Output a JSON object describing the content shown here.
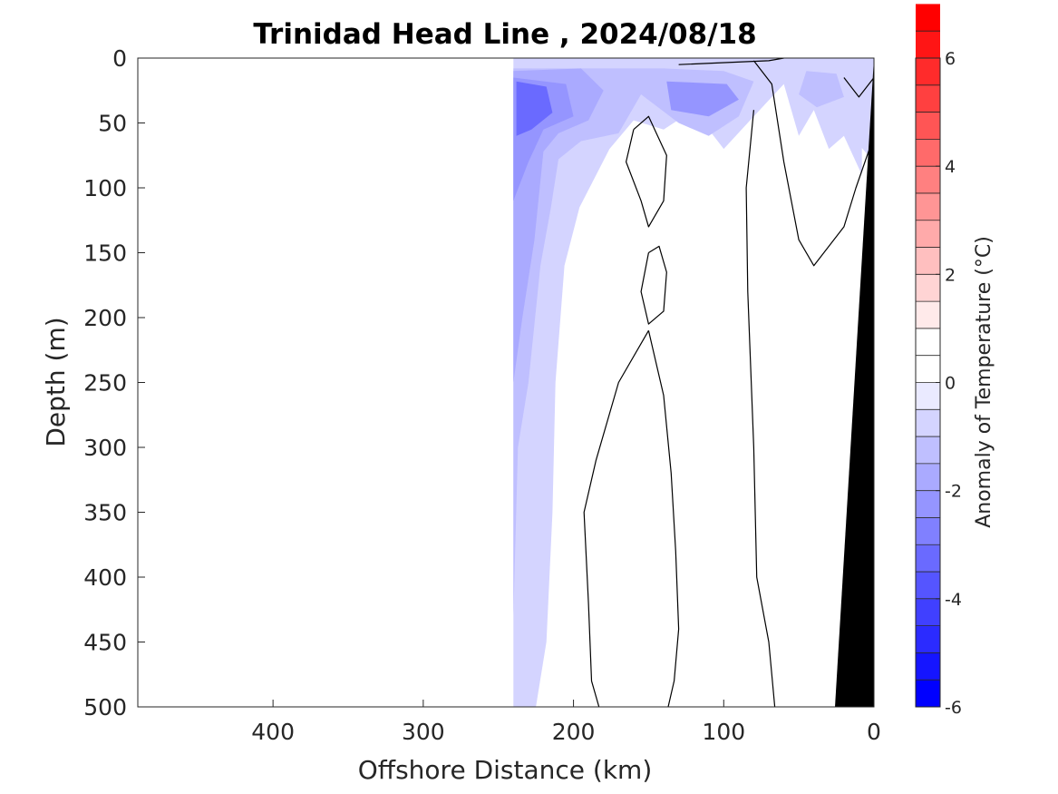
{
  "chart_data": {
    "type": "heatmap",
    "title": "Trinidad Head Line , 2024/08/18",
    "xlabel": "Offshore Distance (km)",
    "ylabel": "Depth (m)",
    "xlim": [
      490,
      0
    ],
    "ylim": [
      500,
      0
    ],
    "x_reversed": true,
    "y_reversed": true,
    "xticks": [
      400,
      300,
      200,
      100,
      0
    ],
    "xtick_labels": [
      "400",
      "300",
      "200",
      "100",
      "0"
    ],
    "yticks": [
      0,
      50,
      100,
      150,
      200,
      250,
      300,
      350,
      400,
      450,
      500
    ],
    "ytick_labels": [
      "0",
      "50",
      "100",
      "150",
      "200",
      "250",
      "300",
      "350",
      "400",
      "450",
      "500"
    ],
    "data_extent_offshore_km": [
      240,
      0
    ],
    "zero_contour_line_color": "#000000",
    "bathymetry_fill_color": "#000000",
    "colorbar": {
      "label": "Anomaly of Temperature (°C)",
      "range": [
        -6,
        6
      ],
      "step": 0.5,
      "ticks": [
        6,
        4,
        2,
        0,
        -2,
        -4,
        -6
      ],
      "tick_labels": [
        "6",
        "4",
        "2",
        "0",
        "-2",
        "-4",
        "-6"
      ],
      "colors_low_to_high": [
        "#0000ff",
        "#1515ff",
        "#2b2bff",
        "#4040ff",
        "#5555ff",
        "#6a6aff",
        "#8080ff",
        "#9595ff",
        "#aaaaff",
        "#bfbfff",
        "#d4d4ff",
        "#eaeaff",
        "#ffffff",
        "#ffffff",
        "#ffeaea",
        "#ffd4d4",
        "#ffbfbf",
        "#ffaaaa",
        "#ff9595",
        "#ff8080",
        "#ff6a6a",
        "#ff5555",
        "#ff4040",
        "#ff2b2b",
        "#ff1515",
        "#ff0000"
      ]
    },
    "anomaly_regions": [
      {
        "value": -1.0,
        "points": [
          [
            240,
            0
          ],
          [
            100,
            0
          ],
          [
            70,
            5
          ],
          [
            55,
            0
          ],
          [
            30,
            0
          ],
          [
            15,
            8
          ],
          [
            15,
            60
          ],
          [
            0,
            80
          ],
          [
            0,
            0
          ]
        ],
        "note": "upper cool layer"
      },
      {
        "value": -0.75,
        "points": [
          [
            240,
            0
          ],
          [
            240,
            500
          ],
          [
            225,
            500
          ],
          [
            218,
            450
          ],
          [
            214,
            350
          ],
          [
            212,
            250
          ],
          [
            206,
            160
          ],
          [
            196,
            115
          ],
          [
            176,
            70
          ],
          [
            160,
            48
          ],
          [
            140,
            55
          ],
          [
            120,
            40
          ],
          [
            100,
            70
          ],
          [
            80,
            45
          ],
          [
            60,
            20
          ],
          [
            50,
            60
          ],
          [
            40,
            40
          ],
          [
            30,
            70
          ],
          [
            20,
            60
          ],
          [
            8,
            90
          ],
          [
            8,
            0
          ]
        ]
      },
      {
        "value": -1.5,
        "points": [
          [
            240,
            8
          ],
          [
            140,
            8
          ],
          [
            100,
            10
          ],
          [
            80,
            18
          ],
          [
            90,
            45
          ],
          [
            110,
            60
          ],
          [
            130,
            50
          ],
          [
            155,
            28
          ],
          [
            170,
            58
          ],
          [
            195,
            64
          ],
          [
            210,
            78
          ],
          [
            215,
            115
          ],
          [
            222,
            160
          ],
          [
            230,
            250
          ],
          [
            237,
            300
          ],
          [
            240,
            430
          ]
        ]
      },
      {
        "value": -2.0,
        "points": [
          [
            240,
            10
          ],
          [
            195,
            8
          ],
          [
            180,
            25
          ],
          [
            190,
            48
          ],
          [
            210,
            58
          ],
          [
            220,
            72
          ],
          [
            226,
            140
          ],
          [
            234,
            200
          ],
          [
            240,
            250
          ]
        ]
      },
      {
        "value": -2.5,
        "points": [
          [
            240,
            15
          ],
          [
            205,
            20
          ],
          [
            200,
            45
          ],
          [
            220,
            55
          ],
          [
            230,
            80
          ],
          [
            240,
            110
          ]
        ]
      },
      {
        "value": -3.5,
        "points": [
          [
            238,
            18
          ],
          [
            218,
            22
          ],
          [
            214,
            42
          ],
          [
            228,
            55
          ],
          [
            238,
            60
          ]
        ]
      },
      {
        "value": -2.5,
        "points": [
          [
            138,
            18
          ],
          [
            98,
            20
          ],
          [
            90,
            32
          ],
          [
            110,
            45
          ],
          [
            135,
            40
          ]
        ]
      },
      {
        "value": -1.5,
        "points": [
          [
            45,
            10
          ],
          [
            25,
            12
          ],
          [
            20,
            30
          ],
          [
            38,
            38
          ],
          [
            50,
            28
          ]
        ]
      },
      {
        "value": 0.75,
        "points": [
          [
            40,
            310
          ],
          [
            30,
            305
          ],
          [
            28,
            350
          ],
          [
            25,
            425
          ],
          [
            12,
            440
          ],
          [
            20,
            360
          ],
          [
            22,
            320
          ]
        ]
      }
    ],
    "zero_contours": [
      {
        "points": [
          [
            130,
            5
          ],
          [
            70,
            2
          ],
          [
            60,
            0
          ]
        ]
      },
      {
        "points": [
          [
            80,
            2
          ],
          [
            68,
            20
          ],
          [
            60,
            80
          ],
          [
            50,
            140
          ],
          [
            40,
            160
          ],
          [
            20,
            130
          ],
          [
            12,
            100
          ],
          [
            0,
            60
          ]
        ]
      },
      {
        "points": [
          [
            80,
            40
          ],
          [
            85,
            100
          ],
          [
            84,
            180
          ],
          [
            80,
            300
          ],
          [
            78,
            400
          ],
          [
            70,
            450
          ],
          [
            66,
            500
          ]
        ]
      },
      {
        "points": [
          [
            160,
            55
          ],
          [
            165,
            80
          ],
          [
            155,
            110
          ],
          [
            150,
            130
          ],
          [
            140,
            110
          ],
          [
            138,
            75
          ],
          [
            150,
            45
          ],
          [
            160,
            55
          ]
        ]
      },
      {
        "points": [
          [
            150,
            150
          ],
          [
            155,
            180
          ],
          [
            150,
            205
          ],
          [
            140,
            195
          ],
          [
            138,
            165
          ],
          [
            143,
            145
          ],
          [
            150,
            150
          ]
        ]
      },
      {
        "points": [
          [
            150,
            210
          ],
          [
            170,
            250
          ],
          [
            185,
            310
          ],
          [
            193,
            350
          ],
          [
            190,
            420
          ],
          [
            188,
            480
          ],
          [
            183,
            500
          ]
        ]
      },
      {
        "points": [
          [
            150,
            210
          ],
          [
            140,
            260
          ],
          [
            135,
            320
          ],
          [
            132,
            380
          ],
          [
            130,
            440
          ],
          [
            133,
            480
          ],
          [
            137,
            500
          ]
        ]
      },
      {
        "points": [
          [
            20,
            15
          ],
          [
            10,
            30
          ],
          [
            0,
            15
          ]
        ]
      }
    ]
  }
}
